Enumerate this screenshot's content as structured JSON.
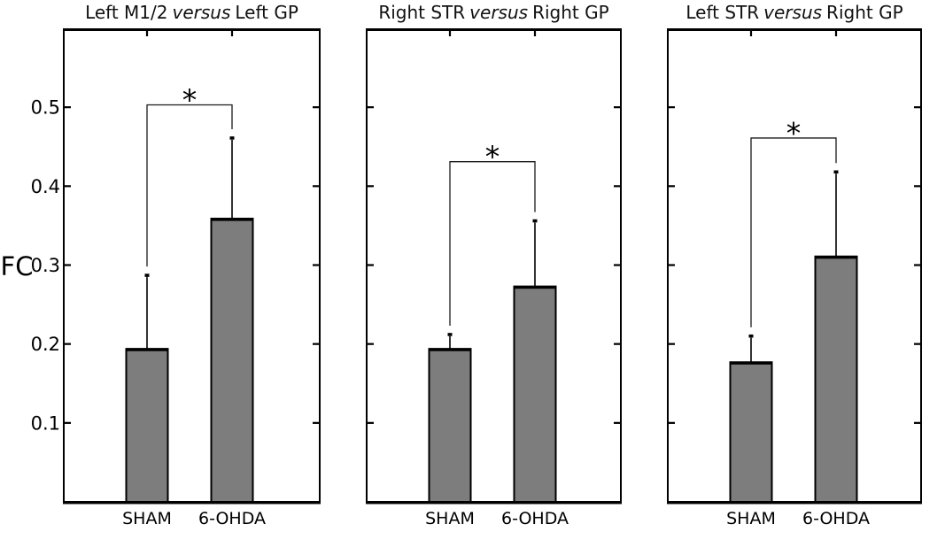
{
  "chart_data": {
    "type": "bar",
    "ylabel": "FC",
    "ylim": [
      0,
      0.6
    ],
    "yticks": [
      0.1,
      0.2,
      0.3,
      0.4,
      0.5
    ],
    "grid": false,
    "legend": "none",
    "categories": [
      "SHAM",
      "6-OHDA"
    ],
    "bar_color": "#7d7d7d",
    "bar_edge_color": "#000000",
    "panels": [
      {
        "title": {
          "pre": "Left M1/2",
          "italic": "versus",
          "post": "Left GP"
        },
        "values": [
          0.193,
          0.358
        ],
        "errors_upper": [
          0.094,
          0.103
        ],
        "significance": {
          "label": "*",
          "bracket_level": 0.503,
          "between": [
            "SHAM",
            "6-OHDA"
          ]
        }
      },
      {
        "title": {
          "pre": "Right STR",
          "italic": "versus",
          "post": "Right GP"
        },
        "values": [
          0.193,
          0.272
        ],
        "errors_upper": [
          0.019,
          0.084
        ],
        "significance": {
          "label": "*",
          "bracket_level": 0.431,
          "between": [
            "SHAM",
            "6-OHDA"
          ]
        }
      },
      {
        "title": {
          "pre": "Left STR",
          "italic": "versus",
          "post": "Right GP"
        },
        "values": [
          0.176,
          0.31
        ],
        "errors_upper": [
          0.034,
          0.108
        ],
        "significance": {
          "label": "*",
          "bracket_level": 0.461,
          "between": [
            "SHAM",
            "6-OHDA"
          ]
        }
      }
    ]
  }
}
